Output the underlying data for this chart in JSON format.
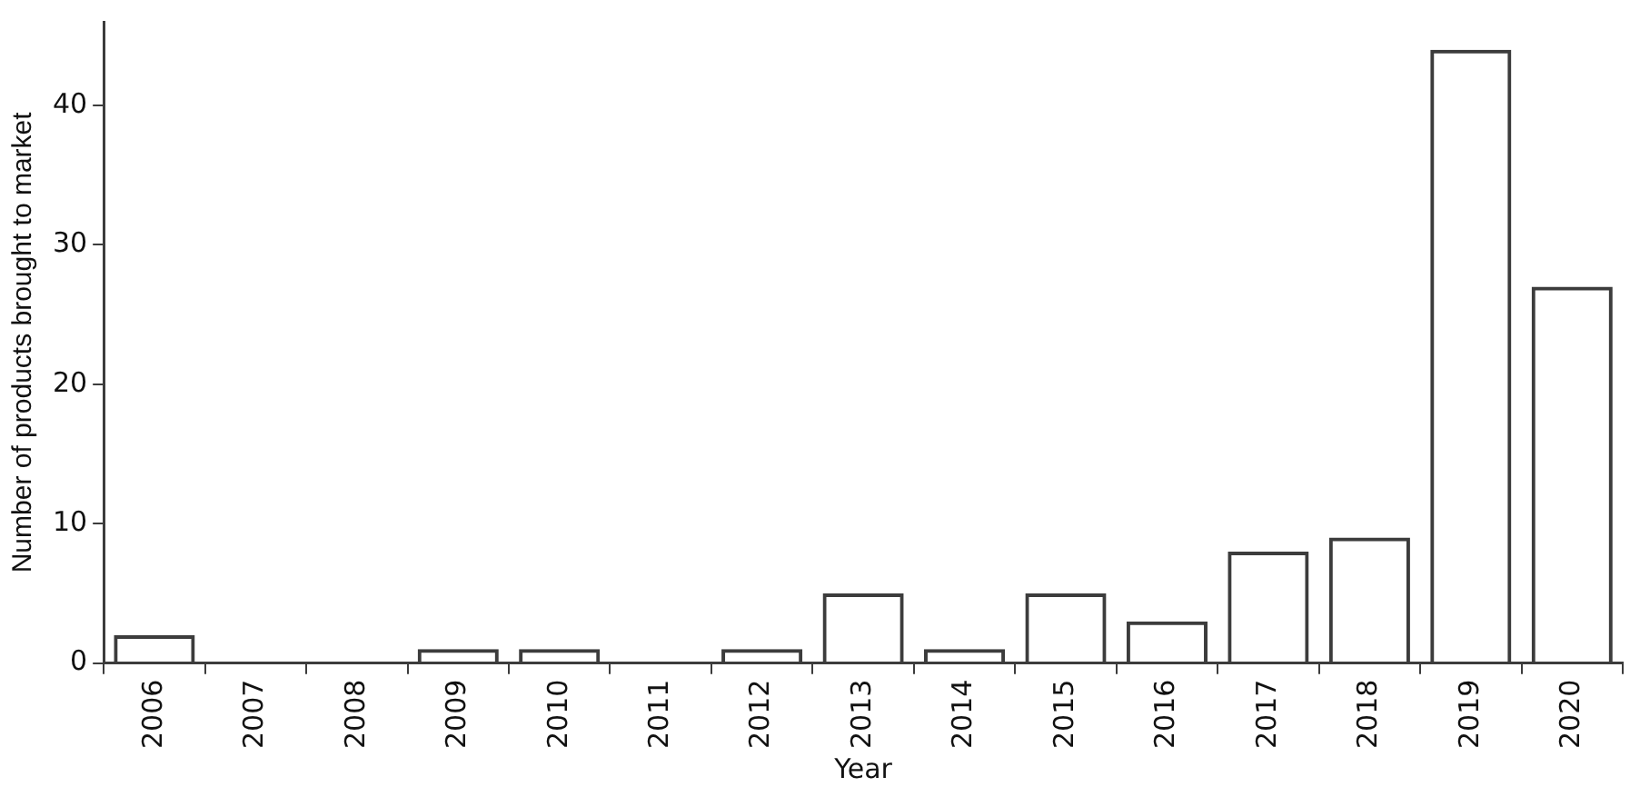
{
  "chart_data": {
    "type": "bar",
    "xlabel": "Year",
    "ylabel": "Number of products brought to market",
    "categories": [
      "2006",
      "2007",
      "2008",
      "2009",
      "2010",
      "2011",
      "2012",
      "2013",
      "2014",
      "2015",
      "2016",
      "2017",
      "2018",
      "2019",
      "2020"
    ],
    "values": [
      2,
      0,
      0,
      1,
      1,
      0,
      1,
      5,
      1,
      5,
      3,
      8,
      9,
      44,
      27
    ],
    "color": "#3c3c3c",
    "ylim": [
      0,
      46
    ],
    "yticks": [
      0,
      10,
      20,
      30,
      40
    ],
    "grid": false,
    "legend": false
  }
}
